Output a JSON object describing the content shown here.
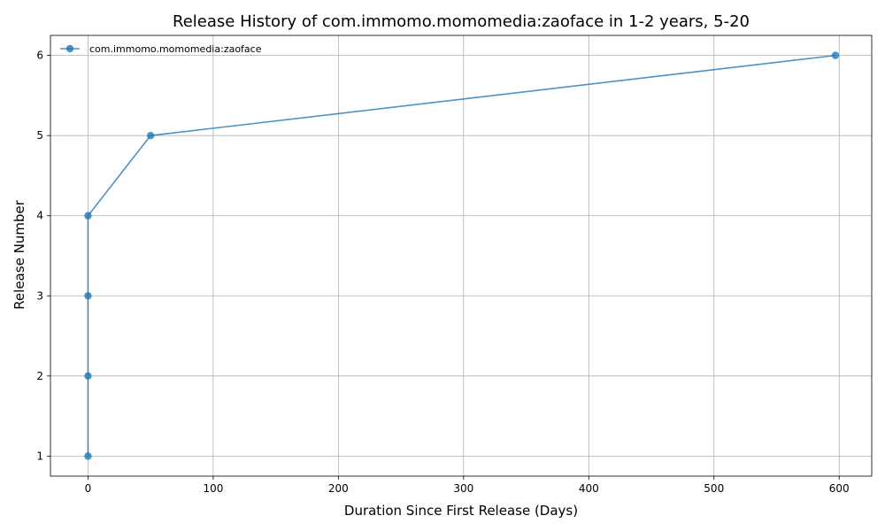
{
  "chart_data": {
    "type": "line",
    "title": "Release History of com.immomo.momomedia:zaoface in 1-2 years, 5-20",
    "xlabel": "Duration Since First Release (Days)",
    "ylabel": "Release Number",
    "xlim": [
      -30,
      626
    ],
    "ylim": [
      0.75,
      6.25
    ],
    "x_ticks": [
      0,
      100,
      200,
      300,
      400,
      500,
      600
    ],
    "y_ticks": [
      1,
      2,
      3,
      4,
      5,
      6
    ],
    "grid": true,
    "legend_position": "top-left",
    "series": [
      {
        "name": "com.immomo.momomedia:zaoface",
        "color": "#1f77b4",
        "marker": "circle",
        "x": [
          0,
          0,
          0,
          0,
          50,
          597
        ],
        "y": [
          1,
          2,
          3,
          4,
          5,
          6
        ]
      }
    ]
  }
}
